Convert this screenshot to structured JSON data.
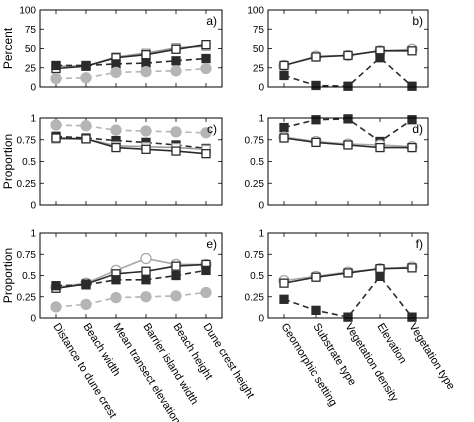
{
  "figure": {
    "categories_left": [
      "Distance to dune crest",
      "Beach width",
      "Mean transect elevation",
      "Barrier island width",
      "Beach height",
      "Dune crest height"
    ],
    "categories_right": [
      "Geomorphic setting",
      "Substrate type",
      "Vegetation density",
      "Elevation",
      "Vegetation type"
    ]
  },
  "chart_data": [
    {
      "panel_label": "a)",
      "type": "line",
      "ylabel": "Percent",
      "ylim": [
        0,
        100
      ],
      "yticks": [
        "0",
        "25",
        "50",
        "75",
        "100"
      ],
      "x_group": "left",
      "series": [
        {
          "style": "light-open-square",
          "values": [
            27,
            27,
            39,
            44,
            51,
            53
          ]
        },
        {
          "style": "dark-open-square",
          "values": [
            24,
            27,
            38,
            42,
            49,
            55
          ]
        },
        {
          "style": "dark-filled-square",
          "values": [
            28,
            28,
            30,
            31,
            34,
            37
          ]
        },
        {
          "style": "grey-filled-circle",
          "values": [
            11,
            12,
            19,
            20,
            21,
            24
          ]
        }
      ]
    },
    {
      "panel_label": "b)",
      "type": "line",
      "ylabel": "",
      "ylim": [
        0,
        100
      ],
      "yticks": [
        "0",
        "25",
        "50",
        "75",
        "100"
      ],
      "x_group": "right",
      "series": [
        {
          "style": "light-open-circle",
          "values": [
            28,
            40,
            41,
            47,
            49
          ]
        },
        {
          "style": "dark-open-square",
          "values": [
            28,
            39,
            41,
            47,
            47
          ]
        },
        {
          "style": "dark-filled-square",
          "values": [
            15,
            2,
            1,
            38,
            1
          ]
        }
      ]
    },
    {
      "panel_label": "c)",
      "type": "line",
      "ylabel": "Proportion",
      "ylim": [
        0,
        1
      ],
      "yticks": [
        "0",
        "0.25",
        "0.5",
        "0.75",
        "1"
      ],
      "x_group": "left",
      "series": [
        {
          "style": "grey-filled-circle",
          "values": [
            0.92,
            0.91,
            0.86,
            0.85,
            0.84,
            0.83
          ]
        },
        {
          "style": "dark-filled-square",
          "values": [
            0.79,
            0.77,
            0.74,
            0.72,
            0.69,
            0.65
          ]
        },
        {
          "style": "light-open-square",
          "values": [
            0.76,
            0.76,
            0.68,
            0.67,
            0.66,
            0.64
          ]
        },
        {
          "style": "dark-open-square",
          "values": [
            0.77,
            0.76,
            0.66,
            0.64,
            0.62,
            0.59
          ]
        }
      ]
    },
    {
      "panel_label": "d)",
      "type": "line",
      "ylabel": "",
      "ylim": [
        0,
        1
      ],
      "yticks": [
        "0",
        "0.25",
        "0.5",
        "0.75",
        "1"
      ],
      "x_group": "right",
      "series": [
        {
          "style": "dark-filled-square",
          "values": [
            0.89,
            0.98,
            0.99,
            0.73,
            0.98
          ]
        },
        {
          "style": "light-open-circle",
          "values": [
            0.78,
            0.73,
            0.7,
            0.69,
            0.67
          ]
        },
        {
          "style": "dark-open-square",
          "values": [
            0.77,
            0.72,
            0.69,
            0.66,
            0.66
          ]
        }
      ]
    },
    {
      "panel_label": "e)",
      "type": "line",
      "ylabel": "Proportion",
      "ylim": [
        0,
        1
      ],
      "yticks": [
        "0",
        "0.25",
        "0.5",
        "0.75",
        "1"
      ],
      "x_group": "left",
      "series": [
        {
          "style": "light-open-circle",
          "values": [
            0.36,
            0.41,
            0.56,
            0.7,
            0.63,
            0.63
          ]
        },
        {
          "style": "dark-open-square",
          "values": [
            0.35,
            0.4,
            0.52,
            0.55,
            0.61,
            0.63
          ]
        },
        {
          "style": "dark-filled-square",
          "values": [
            0.38,
            0.39,
            0.45,
            0.45,
            0.5,
            0.56
          ]
        },
        {
          "style": "grey-filled-circle",
          "values": [
            0.13,
            0.16,
            0.24,
            0.25,
            0.26,
            0.3
          ]
        }
      ]
    },
    {
      "panel_label": "f)",
      "type": "line",
      "ylabel": "",
      "ylim": [
        0,
        1
      ],
      "yticks": [
        "0",
        "0.25",
        "0.5",
        "0.75",
        "1"
      ],
      "x_group": "right",
      "series": [
        {
          "style": "light-open-circle",
          "values": [
            0.44,
            0.49,
            0.54,
            0.58,
            0.6
          ]
        },
        {
          "style": "dark-open-square",
          "values": [
            0.41,
            0.48,
            0.53,
            0.58,
            0.59
          ]
        },
        {
          "style": "dark-filled-square",
          "values": [
            0.22,
            0.09,
            0.01,
            0.49,
            0.01
          ]
        }
      ]
    }
  ],
  "styles": {
    "dark-filled-square": {
      "stroke": "#2b2b2b",
      "fill": "#2b2b2b",
      "marker": "square",
      "dash": "6,4"
    },
    "dark-open-square": {
      "stroke": "#2b2b2b",
      "fill": "#ffffff",
      "marker": "square",
      "dash": ""
    },
    "light-open-square": {
      "stroke": "#9a9a9a",
      "fill": "#ffffff",
      "marker": "square",
      "dash": ""
    },
    "light-open-circle": {
      "stroke": "#a8a8a8",
      "fill": "#ffffff",
      "marker": "circle",
      "dash": ""
    },
    "grey-filled-circle": {
      "stroke": "#b5b5b5",
      "fill": "#b5b5b5",
      "marker": "circle",
      "dash": "6,4"
    }
  }
}
